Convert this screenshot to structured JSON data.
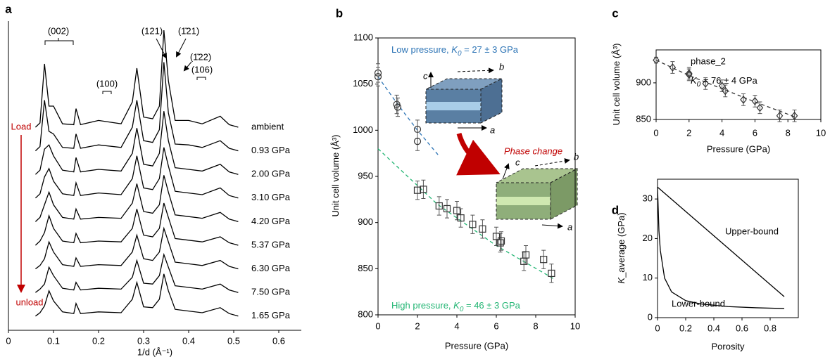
{
  "chart_data": [
    {
      "panel": "a",
      "type": "line",
      "x_label": "1/d (Å⁻¹)",
      "xlim": [
        0,
        0.65
      ],
      "xticks": [
        0,
        0.1,
        0.2,
        0.3,
        0.4,
        0.5,
        0.6
      ],
      "x": [
        0.06,
        0.07,
        0.08,
        0.09,
        0.1,
        0.12,
        0.145,
        0.15,
        0.16,
        0.2,
        0.25,
        0.275,
        0.285,
        0.3,
        0.32,
        0.335,
        0.345,
        0.355,
        0.37,
        0.4,
        0.43,
        0.47,
        0.49,
        0.51
      ],
      "series": [
        {
          "name": "ambient",
          "color": "#000000",
          "values": [
            0,
            0.5,
            7.5,
            2.5,
            2.5,
            0.4,
            0.3,
            2.2,
            0.3,
            0.8,
            0.4,
            3,
            7,
            1.2,
            1,
            2.5,
            11.5,
            5.5,
            0.8,
            0.8,
            0.4,
            1.3,
            0.3,
            0
          ]
        },
        {
          "name": "0.93 GPa",
          "color": "#000000",
          "values": [
            0,
            0.5,
            6,
            2.3,
            2,
            0.4,
            0.3,
            2,
            0.3,
            0.7,
            0.4,
            2.8,
            6,
            1.2,
            1,
            2.5,
            10.5,
            4.5,
            0.8,
            0.7,
            0.4,
            1.2,
            0.3,
            0
          ]
        },
        {
          "name": "2.00 GPa",
          "color": "#000000",
          "values": [
            0,
            0.5,
            3,
            3.5,
            2.2,
            0.5,
            0.3,
            2,
            0.3,
            0.6,
            0.4,
            2.5,
            5.5,
            1.2,
            1,
            2.5,
            7.5,
            4,
            0.8,
            0.6,
            0.4,
            1.2,
            0.3,
            0
          ]
        },
        {
          "name": "3.10 GPa",
          "color": "#000000",
          "values": [
            0,
            0.5,
            2.5,
            3.5,
            2,
            0.5,
            0.3,
            1.8,
            0.3,
            0.6,
            0.4,
            2.3,
            5,
            1.2,
            1,
            2.3,
            6,
            3.8,
            0.8,
            0.6,
            0.4,
            1.2,
            0.3,
            0
          ]
        },
        {
          "name": "4.20 GPa",
          "color": "#000000",
          "values": [
            0,
            0.5,
            2,
            3.5,
            2,
            0.5,
            0.3,
            1.5,
            0.3,
            0.5,
            0.4,
            2.2,
            4.5,
            1.2,
            1,
            2,
            5.5,
            3.5,
            0.8,
            0.6,
            0.4,
            1.1,
            0.3,
            0
          ]
        },
        {
          "name": "5.37 GPa",
          "color": "#000000",
          "values": [
            0,
            0.5,
            1.5,
            3.5,
            2,
            0.5,
            0.3,
            1.4,
            0.3,
            0.5,
            0.4,
            2,
            4.3,
            1.2,
            1,
            2,
            5,
            3.3,
            0.8,
            0.6,
            0.4,
            1,
            0.3,
            0
          ]
        },
        {
          "name": "6.30 GPa",
          "color": "#000000",
          "values": [
            0,
            0.4,
            1.2,
            3.2,
            2,
            0.5,
            0.3,
            1.3,
            0.3,
            0.5,
            0.4,
            2,
            4,
            1.2,
            1,
            2,
            4.8,
            3.2,
            0.8,
            0.6,
            0.4,
            1,
            0.3,
            0
          ]
        },
        {
          "name": "7.50 GPa",
          "color": "#000000",
          "values": [
            0,
            0.4,
            1,
            3,
            2,
            0.5,
            0.3,
            1.2,
            0.3,
            0.5,
            0.4,
            1.8,
            3.8,
            1.1,
            1,
            2,
            4.5,
            3,
            0.8,
            0.6,
            0.4,
            1,
            0.3,
            0
          ]
        },
        {
          "name": "1.65 GPa",
          "color": "#000000",
          "values": [
            0,
            0.4,
            1.2,
            3,
            1.8,
            0.5,
            0.3,
            1.5,
            0.3,
            0.5,
            0.4,
            2,
            4,
            1.1,
            1,
            2,
            5,
            3,
            0.8,
            0.6,
            0.4,
            1,
            0.3,
            0
          ]
        }
      ],
      "annotations": [
        "(002)",
        "(100)",
        "(106)",
        "(121)",
        "(1̄21)",
        "(1̄22)"
      ],
      "load_label": "Load",
      "unload_label": "unload",
      "arrow_color": "#c00000"
    },
    {
      "panel": "b",
      "type": "scatter",
      "x_label": "Pressure (GPa)",
      "y_label": "Unit cell volume (Å³)",
      "xlim": [
        0,
        10
      ],
      "ylim": [
        800,
        1100
      ],
      "xticks": [
        0,
        2,
        4,
        6,
        8,
        10
      ],
      "yticks": [
        800,
        850,
        900,
        950,
        1000,
        1050,
        1100
      ],
      "series": [
        {
          "marker": "circle",
          "color": "#333333",
          "x": [
            0,
            0,
            0.95,
            1,
            2,
            2
          ],
          "values": [
            1062,
            1058,
            1028,
            1025,
            1001,
            988
          ],
          "errors": [
            10,
            10,
            10,
            10,
            10,
            10
          ]
        },
        {
          "marker": "square",
          "color": "#333333",
          "x": [
            2,
            2.3,
            3.1,
            3.5,
            4,
            4.2,
            4.8,
            5.3,
            6,
            6.2,
            6.25,
            7.4,
            7.5,
            8.4,
            8.8
          ],
          "values": [
            935,
            936,
            918,
            915,
            913,
            905,
            898,
            893,
            885,
            878,
            880,
            858,
            865,
            860,
            845
          ],
          "errors": [
            10,
            10,
            10,
            10,
            10,
            10,
            10,
            10,
            10,
            10,
            10,
            10,
            10,
            10,
            10
          ]
        }
      ],
      "fits": [
        {
          "color": "#2e75b6",
          "x": [
            0,
            1,
            2,
            3.1
          ],
          "values": [
            1058,
            1028,
            1000,
            972
          ]
        },
        {
          "color": "#22b573",
          "x": [
            0,
            3,
            6,
            9
          ],
          "values": [
            980,
            920,
            875,
            838
          ]
        }
      ],
      "annotations": [
        {
          "prefix": "Low pressure, ",
          "italic": "K",
          "sub": "0",
          "suffix": " = 27 ± 3 GPa",
          "color": "#2e75b6"
        },
        {
          "prefix": "High pressure, ",
          "italic": "K",
          "sub": "0",
          "suffix": " = 46 ± 3 GPa",
          "color": "#22b573"
        }
      ],
      "phase_label": "Phase change",
      "phase_color": "#c00000",
      "axes_low": [
        "c",
        "b",
        "a"
      ],
      "axes_high": [
        "c",
        "b",
        "a"
      ]
    },
    {
      "panel": "c",
      "type": "scatter",
      "x_label": "Pressure (GPa)",
      "y_label": "Unit cell volume (Å³)",
      "xlim": [
        0,
        10
      ],
      "ylim": [
        850,
        945
      ],
      "xticks": [
        0,
        2,
        4,
        6,
        8,
        10
      ],
      "yticks": [
        850,
        900
      ],
      "series": [
        {
          "marker": "diamond",
          "color": "#333333",
          "x": [
            0,
            1,
            2,
            2,
            3,
            4,
            4.2,
            5.3,
            6,
            6.3,
            7.5,
            8.4
          ],
          "values": [
            931,
            921,
            913,
            911,
            899,
            896,
            889,
            877,
            875,
            866,
            855,
            855
          ],
          "errors": [
            4,
            8,
            8,
            8,
            8,
            8,
            8,
            8,
            8,
            8,
            8,
            8
          ]
        }
      ],
      "fits": [
        {
          "color": "#333333",
          "x": [
            0,
            2,
            4,
            6,
            8.5
          ],
          "values": [
            931,
            910,
            892,
            874,
            853
          ]
        }
      ],
      "phase_name": "phase_2",
      "annotations": [
        {
          "italic": "K",
          "sub": "0",
          "suffix": " = 76 ± 4 GPa",
          "color": "#000000"
        }
      ]
    },
    {
      "panel": "d",
      "type": "line",
      "x_label": "Porosity",
      "y_label_italic": "K",
      "y_label": "_average (GPa)",
      "xlim": [
        0,
        1
      ],
      "ylim": [
        0,
        35
      ],
      "xticks": [
        0,
        0.2,
        0.4,
        0.6,
        0.8
      ],
      "yticks": [
        0,
        10,
        20,
        30
      ],
      "series": [
        {
          "name": "Upper-bound",
          "color": "#000000",
          "x": [
            0,
            0.9
          ],
          "values": [
            33,
            5.3
          ]
        },
        {
          "name": "Lower-bound",
          "color": "#000000",
          "x": [
            0,
            0.01,
            0.02,
            0.05,
            0.1,
            0.2,
            0.3,
            0.5,
            0.7,
            0.9
          ],
          "values": [
            33,
            22,
            17,
            10,
            6.5,
            4.3,
            3.5,
            2.8,
            2.5,
            2.3
          ]
        }
      ]
    }
  ]
}
